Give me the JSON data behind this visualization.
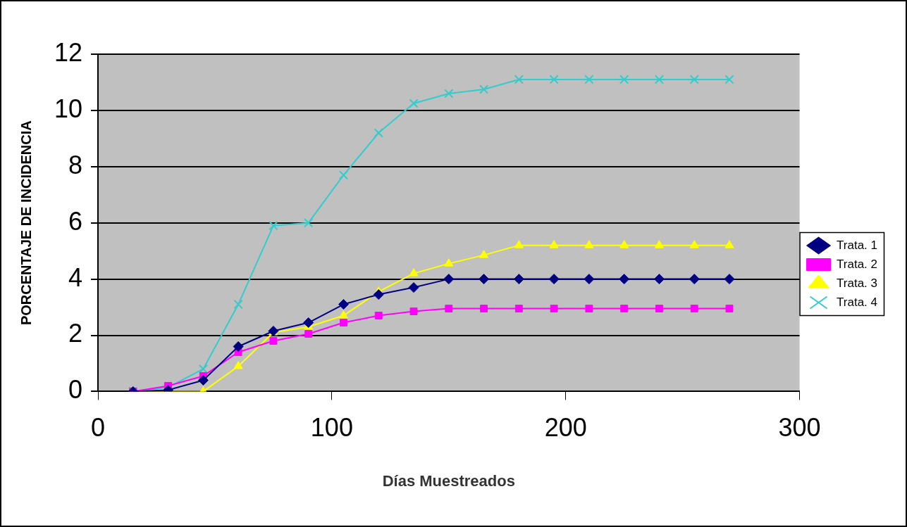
{
  "chart_data": {
    "type": "line",
    "xlabel": "Días Muestreados",
    "ylabel": "PORCENTAJE DE INCIDENCIA",
    "x": [
      15,
      30,
      45,
      60,
      75,
      90,
      105,
      120,
      135,
      150,
      165,
      180,
      195,
      210,
      225,
      240,
      255,
      270
    ],
    "series": [
      {
        "name": "Trata. 1",
        "color": "#000080",
        "marker": "diamond",
        "values": [
          0,
          0.05,
          0.4,
          1.6,
          2.15,
          2.45,
          3.1,
          3.45,
          3.7,
          4.0,
          4.0,
          4.0,
          4.0,
          4.0,
          4.0,
          4.0,
          4.0,
          4.0
        ]
      },
      {
        "name": "Trata. 2",
        "color": "#ff00ff",
        "marker": "square",
        "values": [
          0,
          0.2,
          0.55,
          1.4,
          1.8,
          2.05,
          2.45,
          2.7,
          2.85,
          2.95,
          2.95,
          2.95,
          2.95,
          2.95,
          2.95,
          2.95,
          2.95,
          2.95
        ]
      },
      {
        "name": "Trata. 3",
        "color": "#ffff00",
        "marker": "triangle",
        "values": [
          0,
          0,
          0,
          0.9,
          2.1,
          2.3,
          2.7,
          3.55,
          4.2,
          4.55,
          4.85,
          5.2,
          5.2,
          5.2,
          5.2,
          5.2,
          5.2,
          5.2
        ]
      },
      {
        "name": "Trata. 4",
        "color": "#33cccc",
        "marker": "cross",
        "values": [
          0,
          0.15,
          0.8,
          3.1,
          5.9,
          6.0,
          7.7,
          9.2,
          10.25,
          10.6,
          10.75,
          11.1,
          11.1,
          11.1,
          11.1,
          11.1,
          11.1,
          11.1
        ]
      }
    ],
    "xlim": [
      0,
      300
    ],
    "xticks": [
      0,
      100,
      200,
      300
    ],
    "ylim": [
      0,
      12
    ],
    "yticks": [
      0,
      2,
      4,
      6,
      8,
      10,
      12
    ],
    "grid": "y",
    "legend": "right",
    "line_style": "solid"
  }
}
